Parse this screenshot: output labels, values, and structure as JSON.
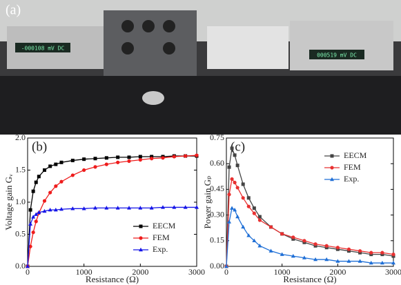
{
  "photo": {
    "label": "(a)",
    "displays": [
      "-000108 mV DC",
      "000519 mV DC"
    ]
  },
  "chart_data": [
    {
      "type": "line",
      "label": "(b)",
      "xlabel": "Resistance (Ω)",
      "ylabel": "Voltage gain Gᵥ",
      "x": [
        0,
        50,
        100,
        150,
        200,
        300,
        400,
        500,
        600,
        800,
        1000,
        1200,
        1400,
        1600,
        1800,
        2000,
        2200,
        2400,
        2600,
        2800,
        3000
      ],
      "xlim": [
        0,
        3000
      ],
      "xticks": [
        0,
        1000,
        2000,
        3000
      ],
      "ylim": [
        0,
        2
      ],
      "yticks": [
        {
          "value": 0,
          "label": "0.0"
        },
        0.5,
        {
          "value": 1,
          "label": "1.0"
        },
        1.5,
        {
          "value": 2,
          "label": "2.0"
        }
      ],
      "legend": "lower right",
      "series": [
        {
          "name": "EECM",
          "color": "#000000",
          "marker": "square",
          "values": [
            0,
            0.88,
            1.17,
            1.31,
            1.4,
            1.5,
            1.56,
            1.59,
            1.62,
            1.65,
            1.67,
            1.68,
            1.69,
            1.7,
            1.7,
            1.71,
            1.71,
            1.71,
            1.72,
            1.72,
            1.72
          ]
        },
        {
          "name": "FEM",
          "color": "#ee1c1c",
          "marker": "circle",
          "values": [
            0,
            0.31,
            0.53,
            0.7,
            0.83,
            1.02,
            1.15,
            1.25,
            1.32,
            1.42,
            1.5,
            1.55,
            1.59,
            1.62,
            1.64,
            1.66,
            1.68,
            1.69,
            1.71,
            1.72,
            1.73
          ]
        },
        {
          "name": "Exp.",
          "color": "#1515e8",
          "marker": "triangle",
          "values": [
            0,
            0.66,
            0.77,
            0.81,
            0.84,
            0.86,
            0.88,
            0.88,
            0.89,
            0.9,
            0.9,
            0.91,
            0.91,
            0.91,
            0.91,
            0.91,
            0.91,
            0.92,
            0.92,
            0.92,
            0.92
          ]
        }
      ]
    },
    {
      "type": "line",
      "label": "(c)",
      "xlabel": "Resistance (Ω)",
      "ylabel": "Power gain Gₚ",
      "x": [
        0,
        50,
        100,
        150,
        200,
        300,
        400,
        500,
        600,
        800,
        1000,
        1200,
        1400,
        1600,
        1800,
        2000,
        2200,
        2400,
        2600,
        2800,
        3000
      ],
      "xlim": [
        0,
        3000
      ],
      "xticks": [
        0,
        1000,
        2000,
        3000
      ],
      "ylim": [
        0,
        0.75
      ],
      "yticks": [
        {
          "value": 0,
          "label": "0.00"
        },
        0.15,
        {
          "value": 0.3,
          "label": "0.30"
        },
        0.45,
        {
          "value": 0.6,
          "label": "0.60"
        },
        0.75
      ],
      "legend": "upper right",
      "series": [
        {
          "name": "EECM",
          "color": "#444444",
          "marker": "square",
          "values": [
            0,
            0.58,
            0.69,
            0.65,
            0.59,
            0.48,
            0.4,
            0.34,
            0.29,
            0.23,
            0.19,
            0.16,
            0.14,
            0.12,
            0.11,
            0.1,
            0.09,
            0.08,
            0.07,
            0.07,
            0.06
          ]
        },
        {
          "name": "FEM",
          "color": "#e83030",
          "marker": "circle",
          "values": [
            0,
            0.42,
            0.51,
            0.49,
            0.46,
            0.4,
            0.35,
            0.31,
            0.27,
            0.23,
            0.19,
            0.17,
            0.15,
            0.13,
            0.12,
            0.11,
            0.1,
            0.09,
            0.08,
            0.08,
            0.07
          ]
        },
        {
          "name": "Exp.",
          "color": "#1f6fd6",
          "marker": "triangle",
          "values": [
            0,
            0.26,
            0.34,
            0.33,
            0.29,
            0.23,
            0.18,
            0.15,
            0.12,
            0.09,
            0.07,
            0.06,
            0.05,
            0.04,
            0.04,
            0.03,
            0.03,
            0.03,
            0.02,
            0.02,
            0.02
          ]
        }
      ]
    }
  ]
}
